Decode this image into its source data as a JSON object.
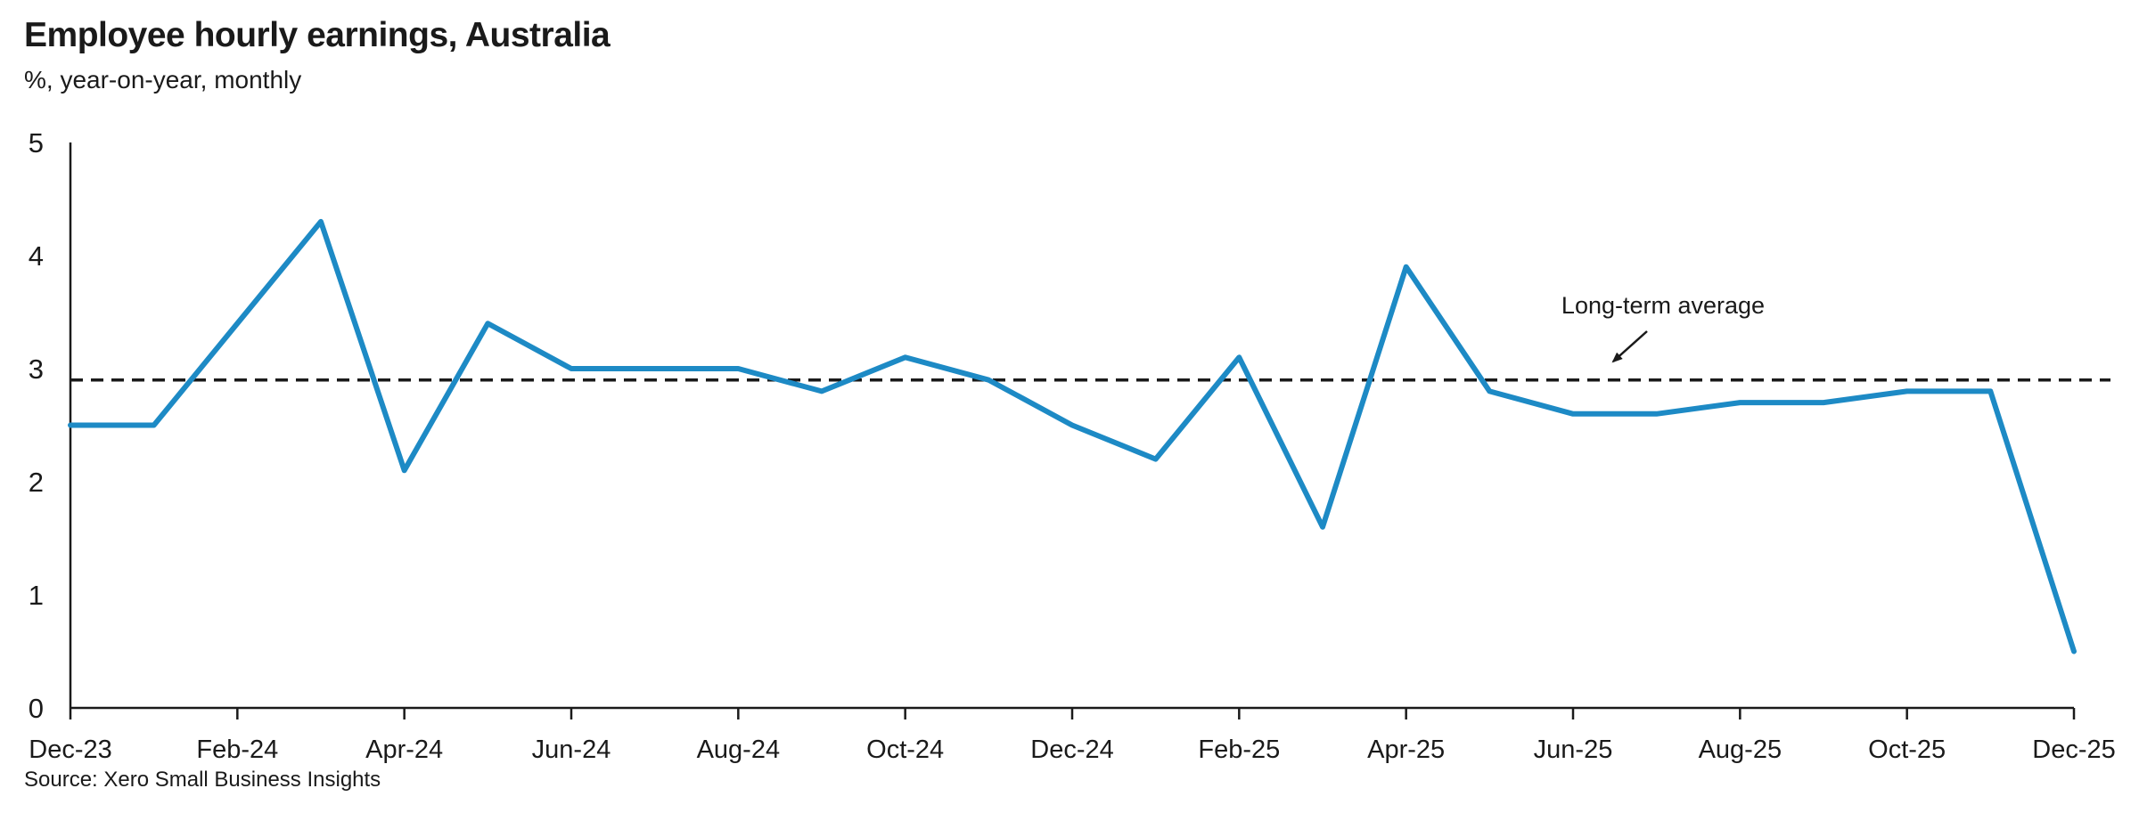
{
  "chart_data": {
    "type": "line",
    "title": "Employee hourly earnings, Australia",
    "subtitle": "%, year-on-year, monthly",
    "source": "Source: Xero Small Business Insights",
    "annotation": "Long-term average",
    "long_term_average": 2.9,
    "xlabel": "",
    "ylabel": "",
    "ylim": [
      0,
      5
    ],
    "yticks": [
      0,
      1,
      2,
      3,
      4,
      5
    ],
    "grid": false,
    "legend": "none",
    "line_color": "#1d8ac5",
    "average_line_color": "#1a1a1a",
    "x": [
      "Dec-23",
      "Jan-24",
      "Feb-24",
      "Mar-24",
      "Apr-24",
      "May-24",
      "Jun-24",
      "Jul-24",
      "Aug-24",
      "Sep-24",
      "Oct-24",
      "Nov-24",
      "Dec-24",
      "Jan-25",
      "Feb-25",
      "Mar-25",
      "Apr-25",
      "May-25",
      "Jun-25",
      "Jul-25",
      "Aug-25",
      "Sep-25",
      "Oct-25",
      "Nov-25",
      "Dec-25"
    ],
    "xtick_labels": [
      "Dec-23",
      "Feb-24",
      "Apr-24",
      "Jun-24",
      "Aug-24",
      "Oct-24",
      "Dec-24",
      "Feb-25",
      "Apr-25",
      "Jun-25",
      "Aug-25",
      "Oct-25",
      "Dec-25"
    ],
    "series": [
      {
        "name": "Employee hourly earnings",
        "values": [
          2.5,
          2.5,
          3.4,
          4.3,
          2.1,
          3.4,
          3.0,
          3.0,
          3.0,
          2.8,
          3.1,
          2.9,
          2.5,
          2.2,
          3.1,
          1.6,
          3.9,
          2.8,
          2.6,
          2.6,
          2.7,
          2.7,
          2.8,
          2.8,
          0.5
        ]
      }
    ]
  }
}
